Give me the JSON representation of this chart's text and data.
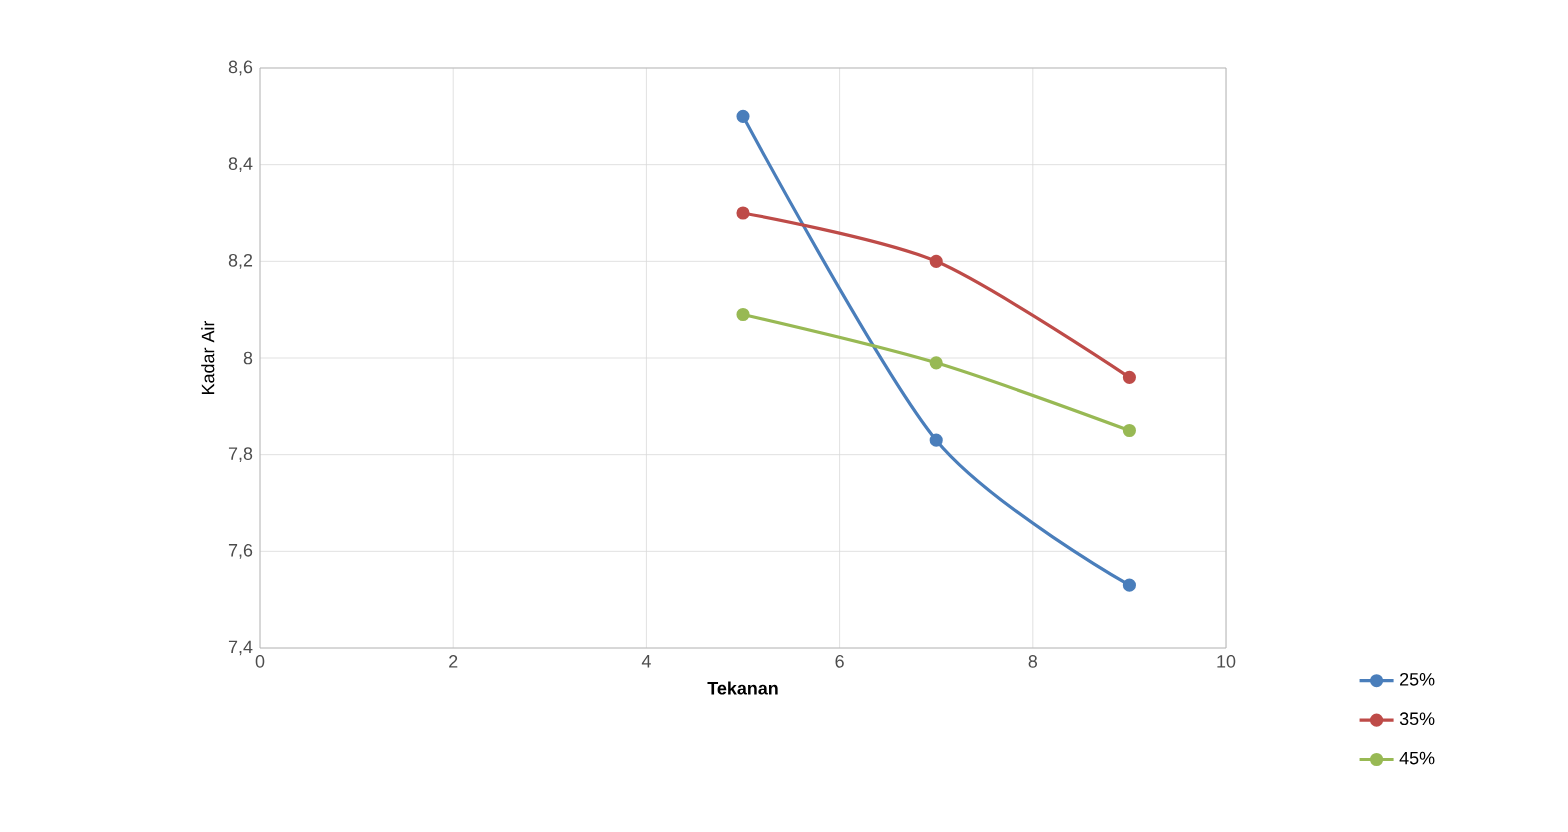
{
  "chart_data": {
    "type": "line",
    "xlabel": "Tekanan",
    "ylabel": "Kadar Air",
    "series": [
      {
        "name": "25%",
        "color": "#4a7ebb",
        "x": [
          5,
          7,
          9
        ],
        "values": [
          8.5,
          7.83,
          7.53
        ]
      },
      {
        "name": "35%",
        "color": "#be4b48",
        "x": [
          5,
          7,
          9
        ],
        "values": [
          8.3,
          8.2,
          7.96
        ]
      },
      {
        "name": "45%",
        "color": "#98b954",
        "x": [
          5,
          7,
          9
        ],
        "values": [
          8.09,
          7.99,
          7.85
        ]
      }
    ],
    "xlim": [
      0,
      10
    ],
    "xticks": [
      0,
      2,
      4,
      6,
      8,
      10
    ],
    "ylim": [
      7.4,
      8.6
    ],
    "yticks": [
      {
        "value": 7.4,
        "label": "7,4"
      },
      {
        "value": 7.6,
        "label": "7,6"
      },
      {
        "value": 7.8,
        "label": "7,8"
      },
      {
        "value": 8,
        "label": "8"
      },
      {
        "value": 8.2,
        "label": "8,2"
      },
      {
        "value": 8.4,
        "label": "8,4"
      },
      {
        "value": 8.6,
        "label": "8,6"
      }
    ],
    "grid": true,
    "legend": "right",
    "marker": "circle",
    "line_style": "solid"
  }
}
